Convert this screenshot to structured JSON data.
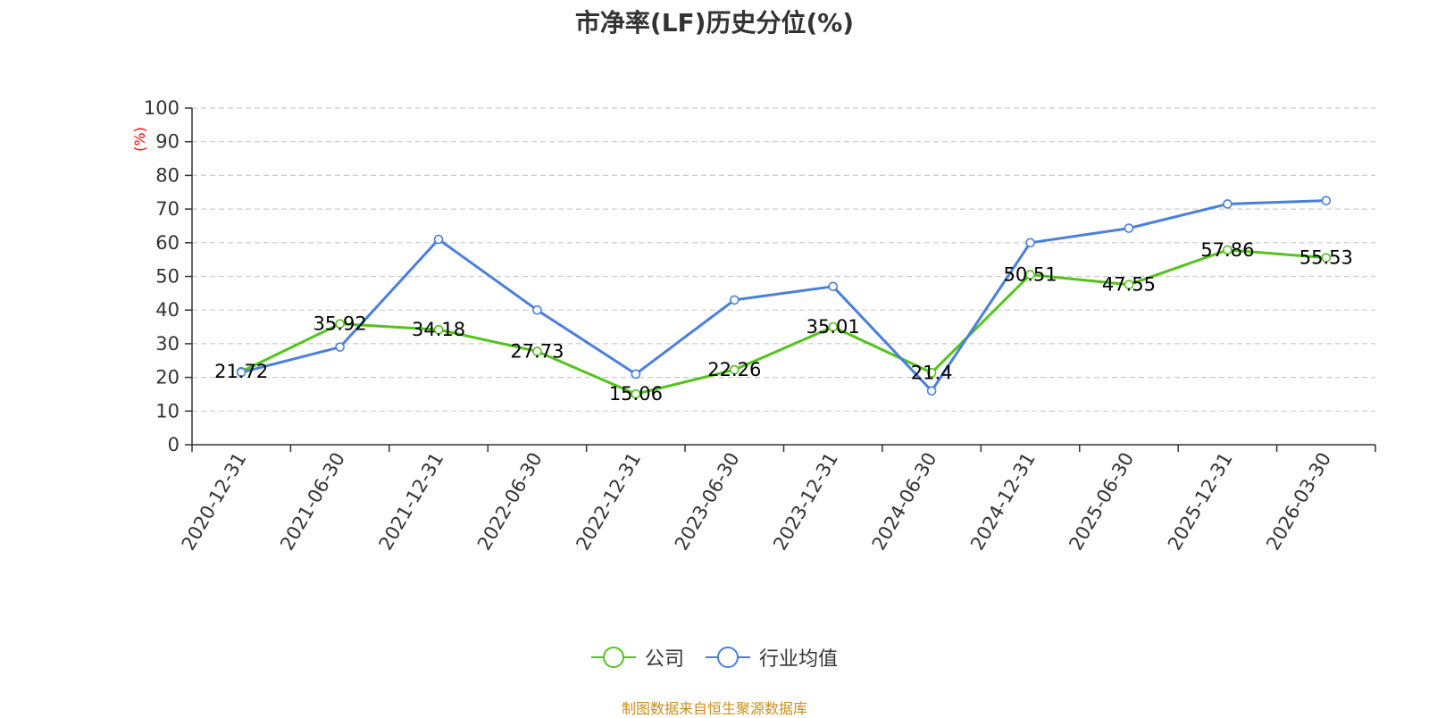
{
  "chart_data": {
    "type": "line",
    "title": "市净率(LF)历史分位(%)",
    "ylabel": "(%)",
    "ylim": [
      0,
      100
    ],
    "y_ticks": [
      0,
      10,
      20,
      30,
      40,
      50,
      60,
      70,
      80,
      90,
      100
    ],
    "categories": [
      "2020-12-31",
      "2021-06-30",
      "2021-12-31",
      "2022-06-30",
      "2022-12-31",
      "2023-06-30",
      "2023-12-31",
      "2024-06-30",
      "2024-12-31",
      "2025-06-30",
      "2025-12-31",
      "2026-03-30"
    ],
    "grid": true,
    "legend_position": "bottom",
    "series": [
      {
        "name": "公司",
        "color": "#52c41a",
        "values": [
          21.72,
          35.92,
          34.18,
          27.73,
          15.06,
          22.26,
          35.01,
          21.4,
          50.51,
          47.55,
          57.86,
          55.53
        ],
        "labels": [
          "21.72",
          "35.92",
          "34.18",
          "27.73",
          "15.06",
          "22.26",
          "35.01",
          "21.4",
          "50.51",
          "47.55",
          "57.86",
          "55.53"
        ]
      },
      {
        "name": "行业均值",
        "color": "#4a7fdc",
        "values": [
          21.5,
          29.0,
          61.0,
          40.0,
          21.0,
          43.0,
          47.0,
          16.0,
          60.0,
          64.3,
          71.5,
          72.5
        ]
      }
    ]
  },
  "legend": {
    "items": [
      {
        "label": "公司"
      },
      {
        "label": "行业均值"
      }
    ]
  },
  "source_text": "制图数据来自恒生聚源数据库",
  "colors": {
    "title": "#333333",
    "axis": "#333333",
    "grid": "#cccccc",
    "unit": "#ff0000",
    "source": "#c8901e"
  }
}
